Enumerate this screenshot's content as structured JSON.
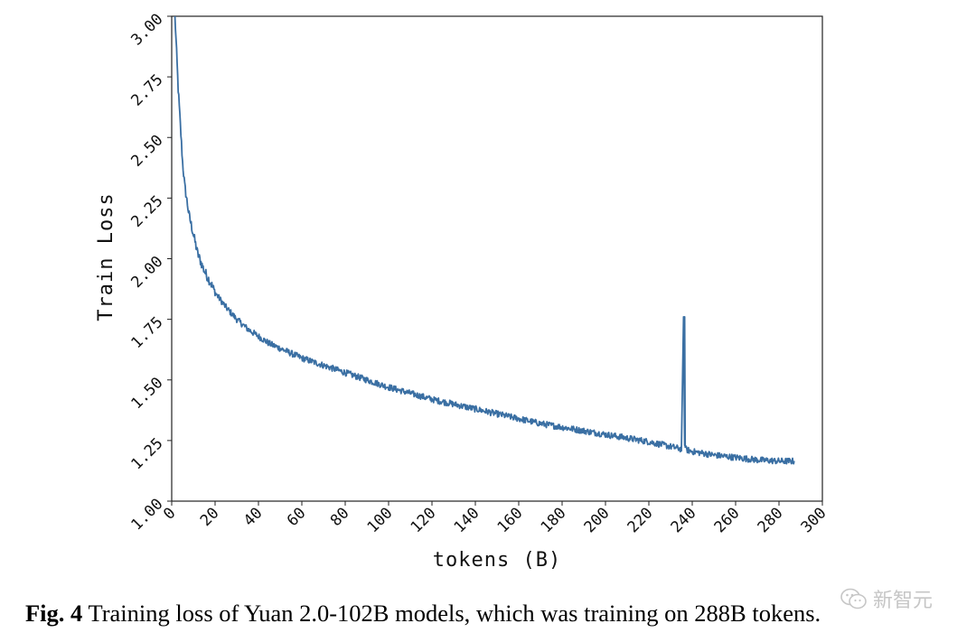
{
  "chart_data": {
    "type": "line",
    "title": "",
    "xlabel": "tokens (B)",
    "ylabel": "Train Loss",
    "xlim": [
      0,
      300
    ],
    "ylim": [
      1.0,
      3.0
    ],
    "xticks": [
      0,
      20,
      40,
      60,
      80,
      100,
      120,
      140,
      160,
      180,
      200,
      220,
      240,
      260,
      280,
      300
    ],
    "xtick_labels": [
      "0",
      "20",
      "40",
      "60",
      "80",
      "100",
      "120",
      "140",
      "160",
      "180",
      "200",
      "220",
      "240",
      "260",
      "280",
      "300"
    ],
    "yticks": [
      1.0,
      1.25,
      1.5,
      1.75,
      2.0,
      2.25,
      2.5,
      2.75,
      3.0
    ],
    "ytick_labels": [
      "1.00",
      "1.25",
      "1.50",
      "1.75",
      "2.00",
      "2.25",
      "2.50",
      "2.75",
      "3.00"
    ],
    "grid": false,
    "series": [
      {
        "name": "Train Loss",
        "color": "#3a6fa3",
        "x": [
          1.5,
          2,
          3,
          4,
          5,
          6,
          8,
          10,
          12,
          15,
          18,
          20,
          25,
          30,
          35,
          40,
          45,
          50,
          55,
          60,
          65,
          70,
          80,
          90,
          100,
          110,
          120,
          130,
          140,
          150,
          160,
          170,
          180,
          190,
          200,
          210,
          220,
          230,
          235,
          236,
          236.5,
          237,
          238,
          240,
          250,
          260,
          270,
          280,
          287
        ],
        "y": [
          3.0,
          2.9,
          2.7,
          2.55,
          2.4,
          2.3,
          2.18,
          2.1,
          2.02,
          1.95,
          1.9,
          1.86,
          1.8,
          1.75,
          1.71,
          1.68,
          1.65,
          1.63,
          1.61,
          1.59,
          1.575,
          1.56,
          1.53,
          1.5,
          1.47,
          1.445,
          1.42,
          1.4,
          1.38,
          1.36,
          1.34,
          1.32,
          1.305,
          1.29,
          1.275,
          1.26,
          1.245,
          1.225,
          1.215,
          1.76,
          1.23,
          1.215,
          1.21,
          1.205,
          1.19,
          1.18,
          1.17,
          1.165,
          1.165
        ]
      }
    ]
  },
  "caption": {
    "label": "Fig. 4",
    "text": "Training loss of Yuan 2.0-102B models, which was training on 288B tokens."
  },
  "watermark": {
    "text": "新智元",
    "icon": "wechat-icon"
  }
}
